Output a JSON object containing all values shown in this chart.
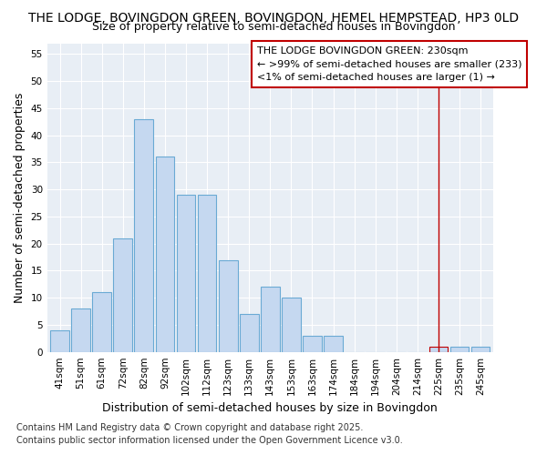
{
  "title_line1": "THE LODGE, BOVINGDON GREEN, BOVINGDON, HEMEL HEMPSTEAD, HP3 0LD",
  "title_line2": "Size of property relative to semi-detached houses in Bovingdon",
  "xlabel": "Distribution of semi-detached houses by size in Bovingdon",
  "ylabel": "Number of semi-detached properties",
  "categories": [
    "41sqm",
    "51sqm",
    "61sqm",
    "72sqm",
    "82sqm",
    "92sqm",
    "102sqm",
    "112sqm",
    "123sqm",
    "133sqm",
    "143sqm",
    "153sqm",
    "163sqm",
    "174sqm",
    "184sqm",
    "194sqm",
    "204sqm",
    "214sqm",
    "225sqm",
    "235sqm",
    "245sqm"
  ],
  "values": [
    4,
    8,
    11,
    21,
    43,
    36,
    29,
    29,
    17,
    7,
    12,
    10,
    3,
    3,
    0,
    0,
    0,
    0,
    1,
    1,
    1
  ],
  "bar_color": "#c5d8f0",
  "bar_edge_color": "#6aaad4",
  "highlight_index": 18,
  "highlight_edge_color": "#c00000",
  "vline_x": 18,
  "vline_color": "#c00000",
  "annotation_box_text": "THE LODGE BOVINGDON GREEN: 230sqm\n← >99% of semi-detached houses are smaller (233)\n<1% of semi-detached houses are larger (1) →",
  "annotation_box_color": "#ffffff",
  "annotation_box_edge_color": "#c00000",
  "ylim": [
    0,
    57
  ],
  "yticks": [
    0,
    5,
    10,
    15,
    20,
    25,
    30,
    35,
    40,
    45,
    50,
    55
  ],
  "fig_bg_color": "#ffffff",
  "plot_bg_color": "#e8eef5",
  "grid_color": "#ffffff",
  "footer_line1": "Contains HM Land Registry data © Crown copyright and database right 2025.",
  "footer_line2": "Contains public sector information licensed under the Open Government Licence v3.0.",
  "title_fontsize": 10,
  "subtitle_fontsize": 9,
  "axis_label_fontsize": 9,
  "tick_fontsize": 7.5,
  "annotation_fontsize": 8,
  "footer_fontsize": 7
}
